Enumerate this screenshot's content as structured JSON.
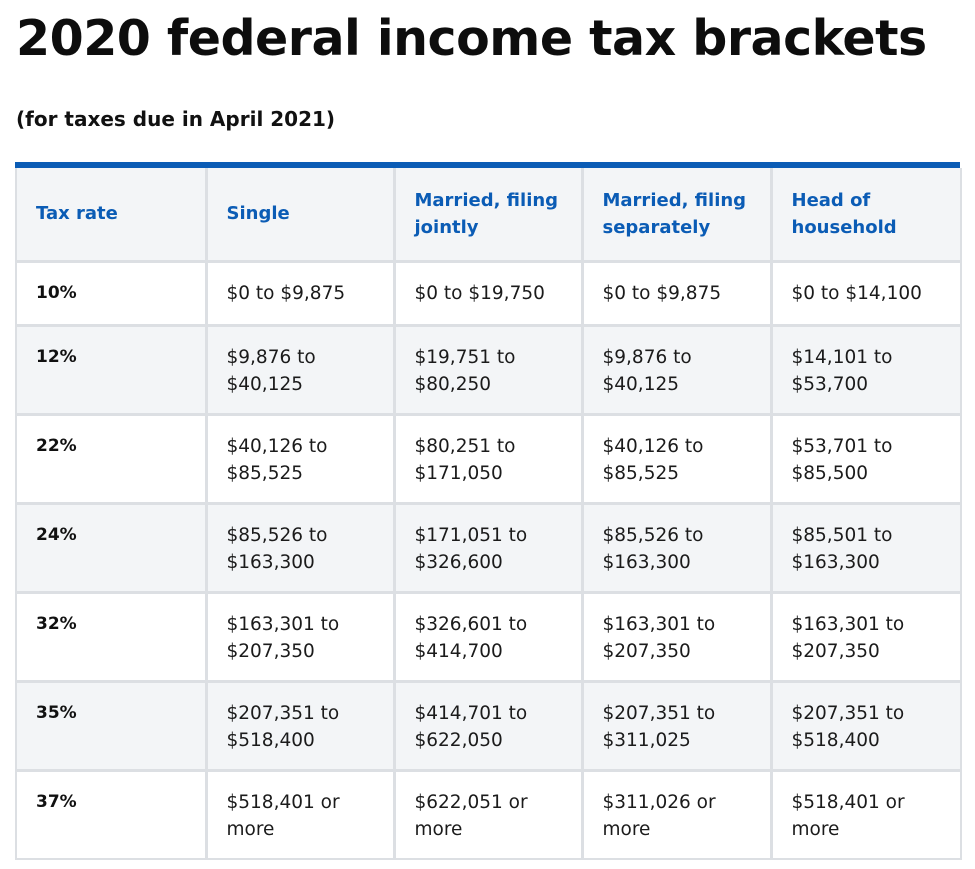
{
  "title": "2020 federal income tax brackets",
  "subtitle": "(for taxes due in April 2021)",
  "table": {
    "headers": [
      "Tax rate",
      "Single",
      "Married, filing jointly",
      "Married, filing separately",
      "Head of household"
    ],
    "rows": [
      [
        "10%",
        "$0 to $9,875",
        "$0 to $19,750",
        "$0 to $9,875",
        "$0 to $14,100"
      ],
      [
        "12%",
        "$9,876 to $40,125",
        "$19,751 to $80,250",
        "$9,876 to $40,125",
        "$14,101 to $53,700"
      ],
      [
        "22%",
        "$40,126 to $85,525",
        "$80,251 to $171,050",
        "$40,126 to $85,525",
        "$53,701 to $85,500"
      ],
      [
        "24%",
        "$85,526 to $163,300",
        "$171,051 to $326,600",
        "$85,526 to $163,300",
        "$85,501 to $163,300"
      ],
      [
        "32%",
        "$163,301 to $207,350",
        "$326,601 to $414,700",
        "$163,301 to $207,350",
        "$163,301 to $207,350"
      ],
      [
        "35%",
        "$207,351 to $518,400",
        "$414,701 to $622,050",
        "$207,351 to $311,025",
        "$207,351 to $518,400"
      ],
      [
        "37%",
        "$518,401 or more",
        "$622,051 or more",
        "$311,026 or more",
        "$518,401 or more"
      ]
    ]
  },
  "colors": {
    "accent": "#0b5cb5",
    "header_bg": "#f3f5f7",
    "row_alt_bg": "#f3f5f7",
    "border": "#dcdfe3"
  }
}
